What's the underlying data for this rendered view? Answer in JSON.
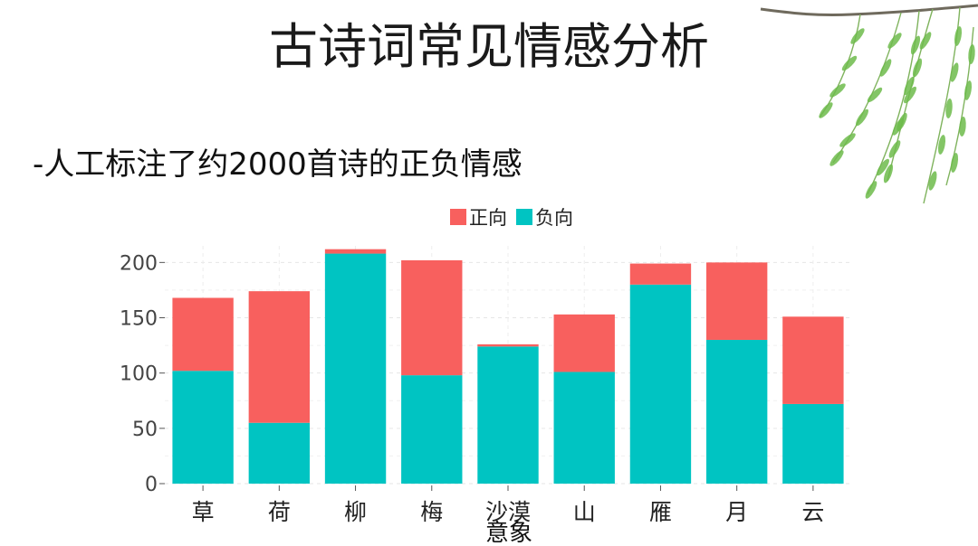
{
  "slide": {
    "title": "古诗词常见情感分析",
    "bullet": "-人工标注了约2000首诗的正负情感"
  },
  "colors": {
    "positive": "#F8605E",
    "negative": "#00C4C2",
    "willow_leaf": "#6dbb4b",
    "willow_branch": "#6f6a5d"
  },
  "decoration": {
    "willow_icon": "willow-branch-icon"
  },
  "chart_data": {
    "type": "bar",
    "stacked": true,
    "title": "",
    "xlabel": "意象",
    "ylabel": "",
    "categories": [
      "草",
      "荷",
      "柳",
      "梅",
      "沙漠",
      "山",
      "雁",
      "月",
      "云"
    ],
    "series": [
      {
        "name": "负向",
        "values": [
          102,
          55,
          208,
          98,
          124,
          101,
          180,
          130,
          72
        ]
      },
      {
        "name": "正向",
        "values": [
          66,
          119,
          4,
          104,
          2,
          52,
          19,
          70,
          79
        ]
      }
    ],
    "legend_order": [
      "正向",
      "负向"
    ],
    "legend_position": "top",
    "ylim": [
      0,
      215
    ],
    "yticks": [
      0,
      50,
      100,
      150,
      200
    ],
    "grid": true
  }
}
